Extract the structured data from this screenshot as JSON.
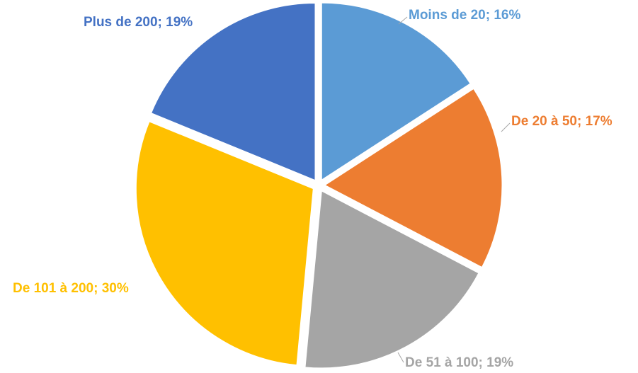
{
  "chart_data": {
    "type": "pie",
    "categories": [
      "Moins de 20",
      "De 20 à 50",
      "De 51 à 100",
      "De 101 à 200",
      "Plus de 200"
    ],
    "values": [
      16,
      17,
      19,
      30,
      19
    ],
    "value_labels": [
      "Moins de 20; 16%",
      "De 20 à 50; 17%",
      "De 51 à 100; 19%",
      "De 101 à 200; 30%",
      "Plus de 200; 19%"
    ],
    "colors": [
      "#5b9bd5",
      "#ed7d31",
      "#a5a5a5",
      "#ffc000",
      "#4472c4"
    ]
  }
}
